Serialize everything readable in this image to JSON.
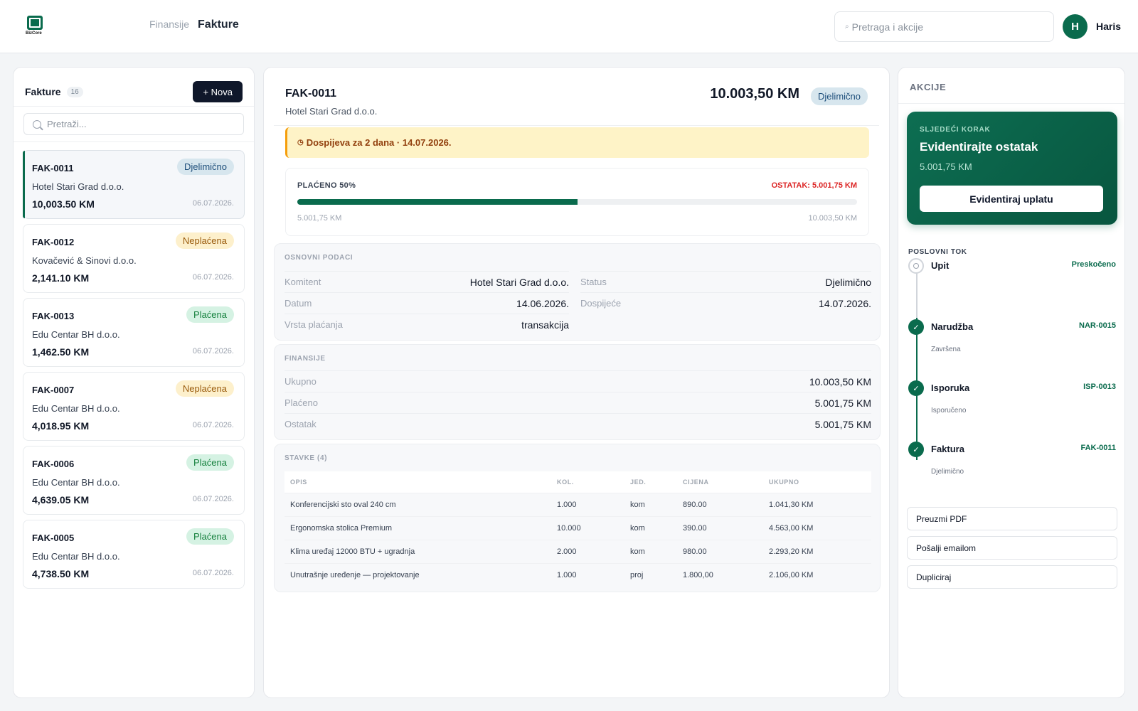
{
  "app": {
    "logo_text": "BizCore"
  },
  "breadcrumb": {
    "parent": "Finansije",
    "current": "Fakture"
  },
  "top_search": {
    "placeholder": "Pretraga i akcije"
  },
  "user": {
    "initial": "H",
    "name": "Haris"
  },
  "list": {
    "title": "Fakture",
    "count": "16",
    "new_button": "+ Nova",
    "search_placeholder": "Pretraži...",
    "items": [
      {
        "number": "FAK-0011",
        "status": "Djelimično",
        "status_kind": "partial",
        "client": "Hotel Stari Grad d.o.o.",
        "amount": "10,003.50 KM",
        "date": "06.07.2026.",
        "active": true
      },
      {
        "number": "FAK-0012",
        "status": "Neplaćena",
        "status_kind": "unpaid",
        "client": "Kovačević & Sinovi d.o.o.",
        "amount": "2,141.10 KM",
        "date": "06.07.2026.",
        "active": false
      },
      {
        "number": "FAK-0013",
        "status": "Plaćena",
        "status_kind": "paid",
        "client": "Edu Centar BH d.o.o.",
        "amount": "1,462.50 KM",
        "date": "06.07.2026.",
        "active": false
      },
      {
        "number": "FAK-0007",
        "status": "Neplaćena",
        "status_kind": "unpaid",
        "client": "Edu Centar BH d.o.o.",
        "amount": "4,018.95 KM",
        "date": "06.07.2026.",
        "active": false
      },
      {
        "number": "FAK-0006",
        "status": "Plaćena",
        "status_kind": "paid",
        "client": "Edu Centar BH d.o.o.",
        "amount": "4,639.05 KM",
        "date": "06.07.2026.",
        "active": false
      },
      {
        "number": "FAK-0005",
        "status": "Plaćena",
        "status_kind": "paid",
        "client": "Edu Centar BH d.o.o.",
        "amount": "4,738.50 KM",
        "date": "06.07.2026.",
        "active": false
      }
    ]
  },
  "detail": {
    "number": "FAK-0011",
    "client": "Hotel Stari Grad d.o.o.",
    "total": "10.003,50 KM",
    "status": "Djelimično",
    "alert": "Dospijeva za 2 dana · 14.07.2026.",
    "payment": {
      "paid_label": "PLAĆENO 50%",
      "remaining_label": "OSTATAK: 5.001,75 KM",
      "progress_fraction": 0.5,
      "paid_amount": "5.001,75 KM",
      "total_amount": "10.003,50 KM"
    },
    "basic": {
      "title": "OSNOVNI PODACI",
      "left": [
        {
          "key": "Komitent",
          "value": "Hotel Stari Grad d.o.o."
        },
        {
          "key": "Datum",
          "value": "14.06.2026."
        },
        {
          "key": "Vrsta plaćanja",
          "value": "transakcija"
        }
      ],
      "right": [
        {
          "key": "Status",
          "value": "Djelimično"
        },
        {
          "key": "Dospijeće",
          "value": "14.07.2026."
        }
      ]
    },
    "finance": {
      "title": "FINANSIJE",
      "rows": [
        {
          "key": "Ukupno",
          "value": "10.003,50 KM"
        },
        {
          "key": "Plaćeno",
          "value": "5.001,75 KM"
        },
        {
          "key": "Ostatak",
          "value": "5.001,75 KM"
        }
      ]
    },
    "items": {
      "title": "STAVKE (4)",
      "columns": [
        "OPIS",
        "KOL.",
        "JED.",
        "CIJENA",
        "UKUPNO"
      ],
      "rows": [
        [
          "Konferencijski sto oval 240 cm",
          "1.000",
          "kom",
          "890.00",
          "1.041,30 KM"
        ],
        [
          "Ergonomska stolica Premium",
          "10.000",
          "kom",
          "390.00",
          "4.563,00 KM"
        ],
        [
          "Klima uređaj 12000 BTU + ugradnja",
          "2.000",
          "kom",
          "980.00",
          "2.293,20 KM"
        ],
        [
          "Unutrašnje uređenje — projektovanje",
          "1.000",
          "proj",
          "1.800,00",
          "2.106,00 KM"
        ]
      ]
    }
  },
  "actions": {
    "title": "AKCIJE",
    "next_step": {
      "label": "SLJEDEĆI KORAK",
      "title": "Evidentirajte ostatak",
      "amount": "5.001,75 KM",
      "button": "Evidentiraj uplatu"
    },
    "flow": {
      "title": "POSLOVNI TOK",
      "steps": [
        {
          "name": "Upit",
          "ref": "Preskočeno",
          "sub": "",
          "state": "skipped"
        },
        {
          "name": "Narudžba",
          "ref": "NAR-0015",
          "sub": "Završena",
          "state": "done"
        },
        {
          "name": "Isporuka",
          "ref": "ISP-0013",
          "sub": "Isporučeno",
          "state": "done"
        },
        {
          "name": "Faktura",
          "ref": "FAK-0011",
          "sub": "Djelimično",
          "state": "done"
        }
      ]
    },
    "buttons": [
      "Preuzmi PDF",
      "Pošalji emailom",
      "Dupliciraj"
    ]
  },
  "colors": {
    "brand": "#0a6b4d",
    "danger": "#dc2626",
    "warning_bg": "#fef3c7"
  }
}
